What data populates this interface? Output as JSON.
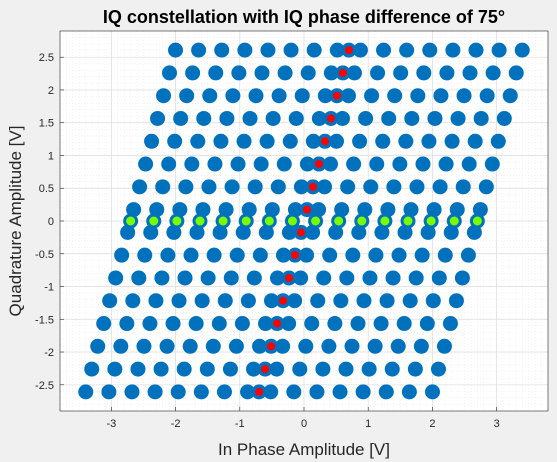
{
  "chart_data": {
    "type": "scatter",
    "title": "IQ constellation with IQ phase difference of 75°",
    "xlabel": "In Phase Amplitude [V]",
    "ylabel": "Quadrature Amplitude [V]",
    "xlim": [
      -3.8,
      3.8
    ],
    "ylim": [
      -2.9,
      2.9
    ],
    "xticks": [
      -3,
      -2,
      -1,
      0,
      1,
      2,
      3
    ],
    "xtick_labels": [
      "-3",
      "-2",
      "-1",
      "0",
      "1",
      "2",
      "3"
    ],
    "yticks": [
      -2.5,
      -2,
      -1.5,
      -1,
      -0.5,
      0,
      0.5,
      1,
      1.5,
      2,
      2.5
    ],
    "ytick_labels": [
      "-2.5",
      "-2",
      "-1.5",
      "-1",
      "-0.5",
      "0",
      "0.5",
      "1",
      "1.5",
      "2",
      "2.5"
    ],
    "grid": true,
    "minor_grid": true,
    "legend": "none",
    "constellation": {
      "levels_per_axis": 16,
      "amplitude_max": 2.7,
      "phase_difference_deg": 75
    },
    "series": [
      {
        "role": "all constellation points",
        "color": "#0072bd"
      },
      {
        "role": "points on the I axis (Q = 0)",
        "color": "#77ff00",
        "edge": "#0072bd"
      },
      {
        "role": "points on the Q axis (I = 0)",
        "color": "#ff0000",
        "edge": "#0072bd"
      }
    ]
  }
}
